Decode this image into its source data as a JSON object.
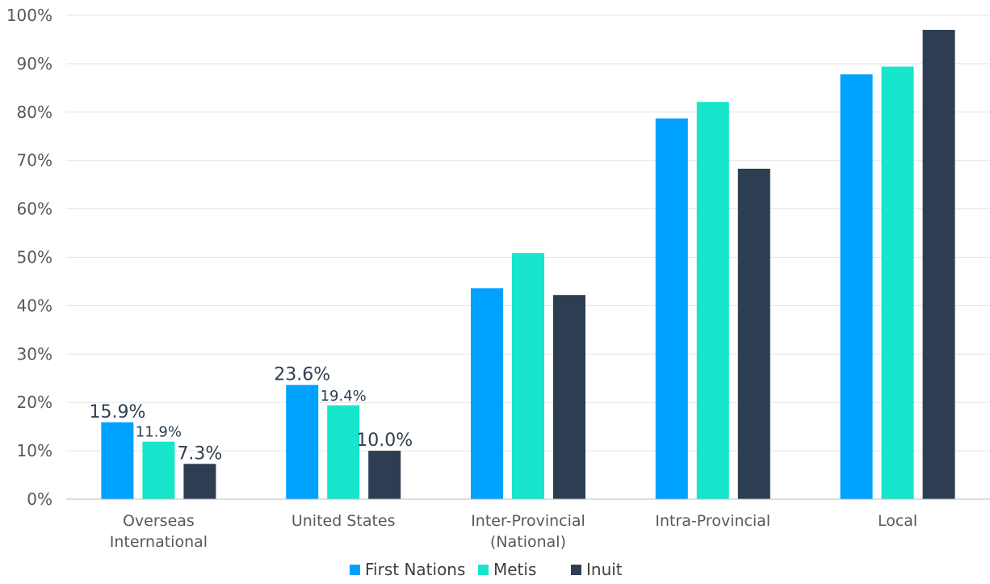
{
  "chart_data": {
    "type": "bar",
    "title": "",
    "xlabel": "",
    "ylabel": "",
    "ylim": [
      0,
      100
    ],
    "ytick_step": 10,
    "ytick_labels": [
      "0%",
      "10%",
      "20%",
      "30%",
      "40%",
      "50%",
      "60%",
      "70%",
      "80%",
      "90%",
      "100%"
    ],
    "grid": true,
    "legend_position": "bottom",
    "categories": [
      [
        "Overseas",
        "International"
      ],
      [
        "United States"
      ],
      [
        "Inter-Provincial",
        "(National)"
      ],
      [
        "Intra-Provincial"
      ],
      [
        "Local"
      ]
    ],
    "series": [
      {
        "name": "First Nations",
        "color": "#00a2ff",
        "values": [
          15.9,
          23.6,
          43.6,
          78.7,
          87.8
        ],
        "labels": [
          "15.9%",
          "23.6%",
          null,
          null,
          null
        ]
      },
      {
        "name": "Metis",
        "color": "#17e6cd",
        "values": [
          11.9,
          19.4,
          50.9,
          82.1,
          89.4
        ],
        "labels": [
          "11.9%",
          "19.4%",
          null,
          null,
          null
        ]
      },
      {
        "name": "Inuit",
        "color": "#2e3e52",
        "values": [
          7.3,
          10.0,
          42.2,
          68.3,
          97.0
        ],
        "labels": [
          "7.3%",
          "10.0%",
          null,
          null,
          null
        ]
      }
    ]
  }
}
